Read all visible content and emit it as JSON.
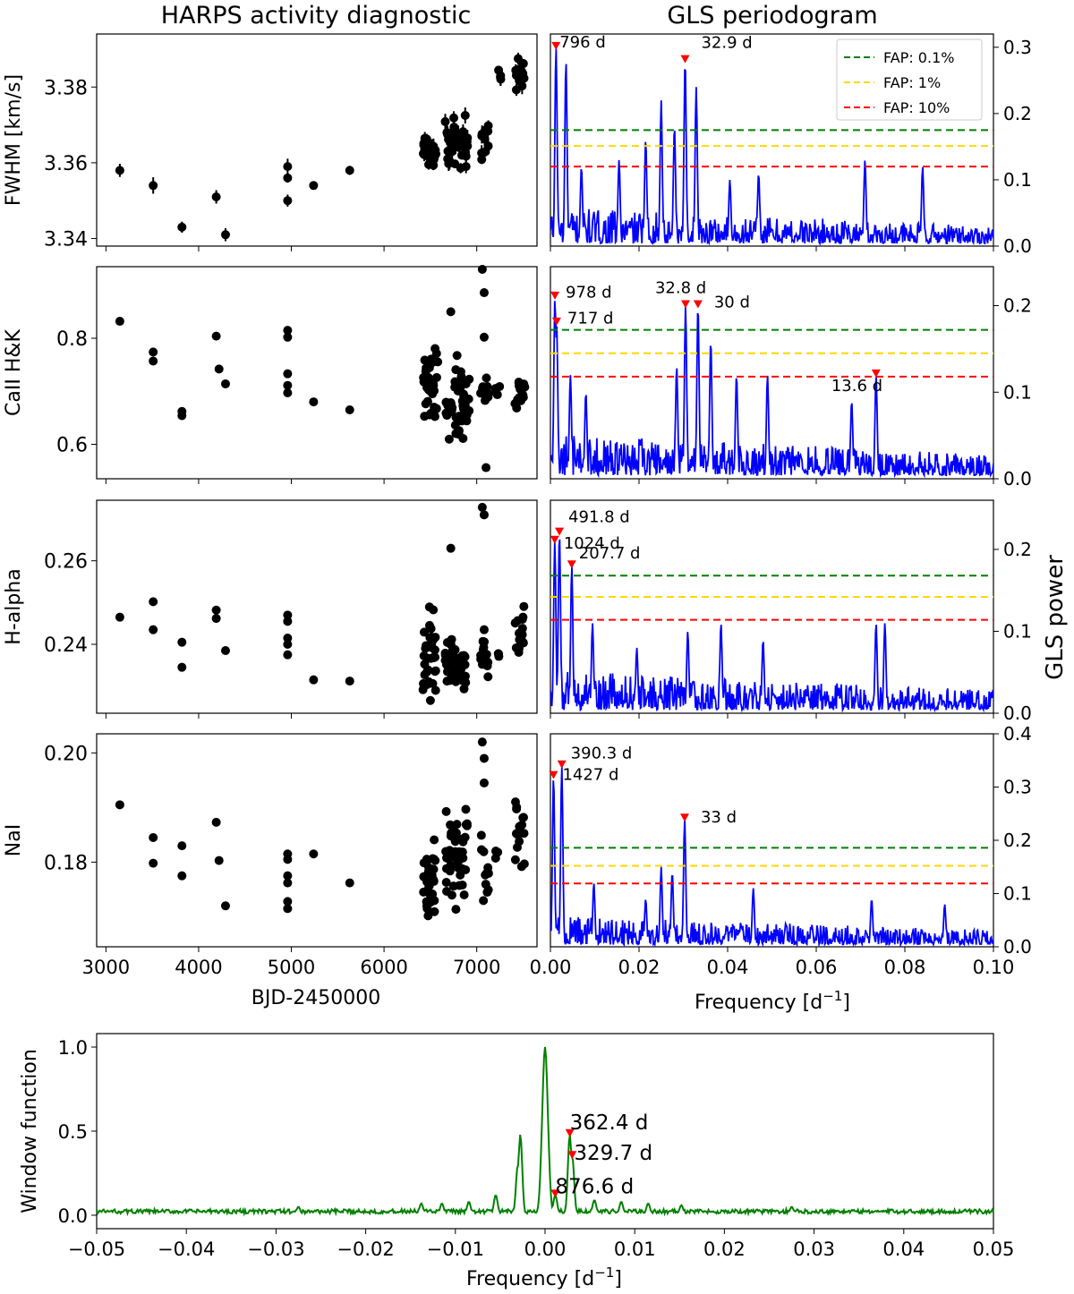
{
  "figure": {
    "left_title": "HARPS activity diagnostic",
    "right_title": "GLS periodogram",
    "right_ylabel": "GLS power",
    "time_xlabel": "BJD-2450000",
    "freq_xlabel": "Frequency [d",
    "freq_xlabel_sup": "−1",
    "freq_xlabel_end": "]",
    "legend": [
      {
        "label": "FAP: 0.1%",
        "color": "#008000"
      },
      {
        "label": "FAP: 1%",
        "color": "#FFD700"
      },
      {
        "label": "FAP: 10%",
        "color": "#FF0000"
      }
    ]
  },
  "chart_data": [
    {
      "type": "scatter",
      "id": "fwhm_ts",
      "ylabel": "FWHM [km/s]",
      "ylim": [
        3.338,
        3.394
      ],
      "xlim": [
        2900,
        7650
      ],
      "yticks": [
        "3.34",
        "3.36",
        "3.38"
      ],
      "ytick_values": [
        3.34,
        3.36,
        3.38
      ],
      "xticks": [
        3000,
        4000,
        5000,
        6000,
        7000
      ],
      "error_bars": true,
      "points": [
        [
          3150,
          3.358
        ],
        [
          3510,
          3.354
        ],
        [
          3820,
          3.343
        ],
        [
          4190,
          3.351
        ],
        [
          4290,
          3.341
        ],
        [
          4960,
          3.35
        ],
        [
          4960,
          3.356
        ],
        [
          4960,
          3.359
        ],
        [
          5240,
          3.354
        ],
        [
          5630,
          3.358
        ]
      ],
      "clusters": [
        {
          "x": [
            6420,
            6560
          ],
          "y": [
            3.356,
            3.37
          ],
          "n": 34
        },
        {
          "x": [
            6660,
            6900
          ],
          "y": [
            3.355,
            3.375
          ],
          "n": 44
        },
        {
          "x": [
            7050,
            7130
          ],
          "y": [
            3.358,
            3.376
          ],
          "n": 12
        },
        {
          "x": [
            7230,
            7290
          ],
          "y": [
            3.38,
            3.386
          ],
          "n": 4
        },
        {
          "x": [
            7410,
            7510
          ],
          "y": [
            3.375,
            3.39
          ],
          "n": 14
        }
      ]
    },
    {
      "type": "line",
      "id": "fwhm_gls",
      "ylim": [
        0,
        0.32
      ],
      "xlim": [
        0,
        0.1
      ],
      "yticks": [
        "0.0",
        "0.1",
        "0.2",
        "0.3"
      ],
      "ytick_values": [
        0,
        0.1,
        0.2,
        0.3
      ],
      "fap_levels": [
        0.175,
        0.151,
        0.12
      ],
      "noise": 0.045,
      "peaks": [
        [
          0.00126,
          0.3
        ],
        [
          0.0035,
          0.28
        ],
        [
          0.0304,
          0.28
        ],
        [
          0.0329,
          0.24
        ],
        [
          0.025,
          0.22
        ],
        [
          0.028,
          0.18
        ],
        [
          0.0215,
          0.16
        ],
        [
          0.047,
          0.11
        ],
        [
          0.071,
          0.13
        ],
        [
          0.084,
          0.12
        ],
        [
          0.0405,
          0.1
        ],
        [
          0.0155,
          0.13
        ],
        [
          0.007,
          0.12
        ]
      ],
      "annotations": [
        {
          "f": 0.00126,
          "p": 0.3,
          "label": "796 d",
          "dx": -2,
          "dy": 0.4
        },
        {
          "f": 0.0304,
          "p": 0.28,
          "label": "32.9 d",
          "dx": 12,
          "dy": -14
        }
      ],
      "show_legend": true
    },
    {
      "type": "scatter",
      "id": "caii_ts",
      "ylabel": "CaII H&K",
      "ylim": [
        0.535,
        0.935
      ],
      "xlim": [
        2900,
        7650
      ],
      "yticks": [
        "0.6",
        "0.8"
      ],
      "ytick_values": [
        0.6,
        0.8
      ],
      "xticks": [
        3000,
        4000,
        5000,
        6000,
        7000
      ],
      "error_bars": false,
      "points": [
        [
          3150,
          0.832
        ],
        [
          3510,
          0.774
        ],
        [
          3510,
          0.757
        ],
        [
          3820,
          0.662
        ],
        [
          3820,
          0.654
        ],
        [
          4190,
          0.804
        ],
        [
          4220,
          0.742
        ],
        [
          4290,
          0.714
        ],
        [
          4960,
          0.815
        ],
        [
          4960,
          0.802
        ],
        [
          4960,
          0.733
        ],
        [
          4960,
          0.711
        ],
        [
          4960,
          0.697
        ],
        [
          5240,
          0.68
        ],
        [
          5630,
          0.665
        ],
        [
          6720,
          0.85
        ],
        [
          7060,
          0.93
        ],
        [
          7080,
          0.886
        ],
        [
          7100,
          0.556
        ],
        [
          7080,
          0.802
        ]
      ],
      "clusters": [
        {
          "x": [
            6420,
            6580
          ],
          "y": [
            0.585,
            0.815
          ],
          "n": 36
        },
        {
          "x": [
            6660,
            6920
          ],
          "y": [
            0.565,
            0.785
          ],
          "n": 46
        },
        {
          "x": [
            7040,
            7130
          ],
          "y": [
            0.645,
            0.76
          ],
          "n": 12
        },
        {
          "x": [
            7200,
            7260
          ],
          "y": [
            0.66,
            0.73
          ],
          "n": 4
        },
        {
          "x": [
            7410,
            7520
          ],
          "y": [
            0.632,
            0.745
          ],
          "n": 14
        }
      ]
    },
    {
      "type": "line",
      "id": "caii_gls",
      "ylim": [
        0,
        0.245
      ],
      "xlim": [
        0,
        0.1
      ],
      "yticks": [
        "0.0",
        "0.1",
        "0.2"
      ],
      "ytick_values": [
        0,
        0.1,
        0.2
      ],
      "fap_levels": [
        0.172,
        0.145,
        0.118
      ],
      "noise": 0.04,
      "peaks": [
        [
          0.00102,
          0.21
        ],
        [
          0.0014,
          0.18
        ],
        [
          0.0305,
          0.2
        ],
        [
          0.0333,
          0.2
        ],
        [
          0.0362,
          0.16
        ],
        [
          0.0735,
          0.12
        ],
        [
          0.0285,
          0.13
        ],
        [
          0.042,
          0.12
        ],
        [
          0.049,
          0.12
        ],
        [
          0.008,
          0.1
        ],
        [
          0.0045,
          0.12
        ],
        [
          0.068,
          0.09
        ]
      ],
      "annotations": [
        {
          "f": 0.00102,
          "p": 0.21,
          "label": "978 d",
          "dx": 6,
          "dy": 0.4
        },
        {
          "f": 0.0014,
          "p": 0.18,
          "label": "717 d",
          "dx": 6,
          "dy": 0.4
        },
        {
          "f": 0.0305,
          "p": 0.2,
          "label": "32.8 d",
          "dx": -40,
          "dy": -14
        },
        {
          "f": 0.0333,
          "p": 0.2,
          "label": "30 d",
          "dx": 12,
          "dy": 2
        },
        {
          "f": 0.0735,
          "p": 0.12,
          "label": "13.6 d",
          "dx": -56,
          "dy": 18
        }
      ],
      "show_legend": false
    },
    {
      "type": "scatter",
      "id": "halpha_ts",
      "ylabel": "H-alpha",
      "ylim": [
        0.2235,
        0.2745
      ],
      "xlim": [
        2900,
        7650
      ],
      "yticks": [
        "0.24",
        "0.26"
      ],
      "ytick_values": [
        0.24,
        0.26
      ],
      "xticks": [
        3000,
        4000,
        5000,
        6000,
        7000
      ],
      "error_bars": false,
      "points": [
        [
          3150,
          0.2465
        ],
        [
          3510,
          0.2502
        ],
        [
          3510,
          0.2435
        ],
        [
          3820,
          0.2405
        ],
        [
          3820,
          0.2345
        ],
        [
          4190,
          0.2482
        ],
        [
          4190,
          0.2462
        ],
        [
          4290,
          0.2385
        ],
        [
          4960,
          0.247
        ],
        [
          4960,
          0.2455
        ],
        [
          4960,
          0.2415
        ],
        [
          4960,
          0.24
        ],
        [
          4960,
          0.2375
        ],
        [
          5240,
          0.2315
        ],
        [
          5630,
          0.2312
        ],
        [
          6720,
          0.263
        ],
        [
          7060,
          0.2728
        ],
        [
          7080,
          0.271
        ],
        [
          7080,
          0.2435
        ]
      ],
      "clusters": [
        {
          "x": [
            6420,
            6560
          ],
          "y": [
            0.2245,
            0.2505
          ],
          "n": 36
        },
        {
          "x": [
            6660,
            6900
          ],
          "y": [
            0.2255,
            0.2445
          ],
          "n": 46
        },
        {
          "x": [
            7040,
            7130
          ],
          "y": [
            0.229,
            0.244
          ],
          "n": 12
        },
        {
          "x": [
            7200,
            7260
          ],
          "y": [
            0.237,
            0.238
          ],
          "n": 3
        },
        {
          "x": [
            7410,
            7520
          ],
          "y": [
            0.232,
            0.2525
          ],
          "n": 16
        }
      ]
    },
    {
      "type": "line",
      "id": "halpha_gls",
      "ylim": [
        0,
        0.26
      ],
      "xlim": [
        0,
        0.1
      ],
      "yticks": [
        "0.0",
        "0.1",
        "0.2"
      ],
      "ytick_values": [
        0,
        0.1,
        0.2
      ],
      "fap_levels": [
        0.168,
        0.142,
        0.114
      ],
      "noise": 0.04,
      "peaks": [
        [
          0.00098,
          0.21
        ],
        [
          0.00203,
          0.22
        ],
        [
          0.00481,
          0.18
        ],
        [
          0.0385,
          0.11
        ],
        [
          0.0735,
          0.11
        ],
        [
          0.0755,
          0.11
        ],
        [
          0.031,
          0.1
        ],
        [
          0.048,
          0.09
        ],
        [
          0.0095,
          0.11
        ],
        [
          0.0195,
          0.08
        ]
      ],
      "annotations": [
        {
          "f": 0.00203,
          "p": 0.22,
          "label": "491.8 d",
          "dx": 4,
          "dy": -12
        },
        {
          "f": 0.00098,
          "p": 0.21,
          "label": "1024 d",
          "dx": 4,
          "dy": 8
        },
        {
          "f": 0.00481,
          "p": 0.18,
          "label": "207.7 d",
          "dx": 2,
          "dy": -8
        }
      ],
      "show_legend": false
    },
    {
      "type": "scatter",
      "id": "nai_ts",
      "ylabel": "NaI",
      "ylim": [
        0.1645,
        0.2035
      ],
      "xlim": [
        2900,
        7650
      ],
      "yticks": [
        "0.18",
        "0.20"
      ],
      "ytick_values": [
        0.18,
        0.2
      ],
      "xticks": [
        3000,
        4000,
        5000,
        6000,
        7000
      ],
      "error_bars": false,
      "points": [
        [
          3150,
          0.1905
        ],
        [
          3510,
          0.1845
        ],
        [
          3510,
          0.1798
        ],
        [
          3820,
          0.183
        ],
        [
          3820,
          0.1775
        ],
        [
          4190,
          0.1873
        ],
        [
          4220,
          0.1803
        ],
        [
          4290,
          0.172
        ],
        [
          4960,
          0.1815
        ],
        [
          4960,
          0.1805
        ],
        [
          4960,
          0.1775
        ],
        [
          4960,
          0.1762
        ],
        [
          4960,
          0.1728
        ],
        [
          4960,
          0.1715
        ],
        [
          5240,
          0.1815
        ],
        [
          5630,
          0.1762
        ],
        [
          7060,
          0.202
        ],
        [
          7080,
          0.199
        ],
        [
          7080,
          0.1945
        ]
      ],
      "clusters": [
        {
          "x": [
            6420,
            6560
          ],
          "y": [
            0.1655,
            0.185
          ],
          "n": 36
        },
        {
          "x": [
            6660,
            6900
          ],
          "y": [
            0.169,
            0.194
          ],
          "n": 46
        },
        {
          "x": [
            7040,
            7130
          ],
          "y": [
            0.17,
            0.188
          ],
          "n": 12
        },
        {
          "x": [
            7200,
            7260
          ],
          "y": [
            0.18,
            0.183
          ],
          "n": 3
        },
        {
          "x": [
            7410,
            7520
          ],
          "y": [
            0.177,
            0.193
          ],
          "n": 16
        }
      ]
    },
    {
      "type": "line",
      "id": "nai_gls",
      "ylim": [
        0,
        0.4
      ],
      "xlim": [
        0,
        0.1
      ],
      "yticks": [
        "0.0",
        "0.1",
        "0.2",
        "0.3",
        "0.4"
      ],
      "ytick_values": [
        0,
        0.1,
        0.2,
        0.3,
        0.4
      ],
      "fap_levels": [
        0.186,
        0.152,
        0.119
      ],
      "noise": 0.045,
      "peaks": [
        [
          0.0007,
          0.32
        ],
        [
          0.00256,
          0.34
        ],
        [
          0.0303,
          0.24
        ],
        [
          0.025,
          0.15
        ],
        [
          0.0275,
          0.14
        ],
        [
          0.0458,
          0.11
        ],
        [
          0.0098,
          0.12
        ],
        [
          0.0215,
          0.09
        ],
        [
          0.0725,
          0.09
        ],
        [
          0.089,
          0.08
        ]
      ],
      "annotations": [
        {
          "f": 0.00256,
          "p": 0.34,
          "label": "390.3 d",
          "dx": 4,
          "dy": -8
        },
        {
          "f": 0.0007,
          "p": 0.32,
          "label": "1427 d",
          "dx": 4,
          "dy": 4
        },
        {
          "f": 0.0303,
          "p": 0.24,
          "label": "33 d",
          "dx": 12,
          "dy": 4
        }
      ],
      "show_legend": false
    },
    {
      "type": "line",
      "id": "window_function",
      "ylabel": "Window function",
      "ylim": [
        -0.08,
        1.08
      ],
      "xlim": [
        -0.05,
        0.05
      ],
      "yticks": [
        "0.0",
        "0.5",
        "1.0"
      ],
      "ytick_values": [
        0.0,
        0.5,
        1.0
      ],
      "xticks": [
        "−0.05",
        "−0.04",
        "−0.03",
        "−0.02",
        "−0.01",
        "0.00",
        "0.01",
        "0.02",
        "0.03",
        "0.04",
        "0.05"
      ],
      "xtick_values": [
        -0.05,
        -0.04,
        -0.03,
        -0.02,
        -0.01,
        0,
        0.01,
        0.02,
        0.03,
        0.04,
        0.05
      ],
      "color": "#008000",
      "peaks": [
        [
          0,
          1.0
        ],
        [
          -0.00276,
          0.48
        ],
        [
          0.00276,
          0.48
        ],
        [
          0.00303,
          0.35
        ],
        [
          -0.00303,
          0.3
        ],
        [
          0.00114,
          0.12
        ],
        [
          -0.0055,
          0.12
        ],
        [
          0.0055,
          0.09
        ],
        [
          0.0085,
          0.08
        ],
        [
          0.0115,
          0.07
        ],
        [
          -0.0085,
          0.08
        ],
        [
          -0.0138,
          0.07
        ],
        [
          0.0275,
          0.05
        ],
        [
          -0.0275,
          0.05
        ],
        [
          0.0152,
          0.06
        ],
        [
          -0.0115,
          0.07
        ]
      ],
      "annotations": [
        {
          "f": 0.00276,
          "p": 0.48,
          "label": "362.4 d",
          "dx": 0,
          "dy": -6
        },
        {
          "f": 0.00303,
          "p": 0.35,
          "label": "329.7 d",
          "dx": 2,
          "dy": 4
        },
        {
          "f": 0.00114,
          "p": 0.12,
          "label": "876.6 d",
          "dx": 0,
          "dy": -2
        }
      ]
    }
  ]
}
